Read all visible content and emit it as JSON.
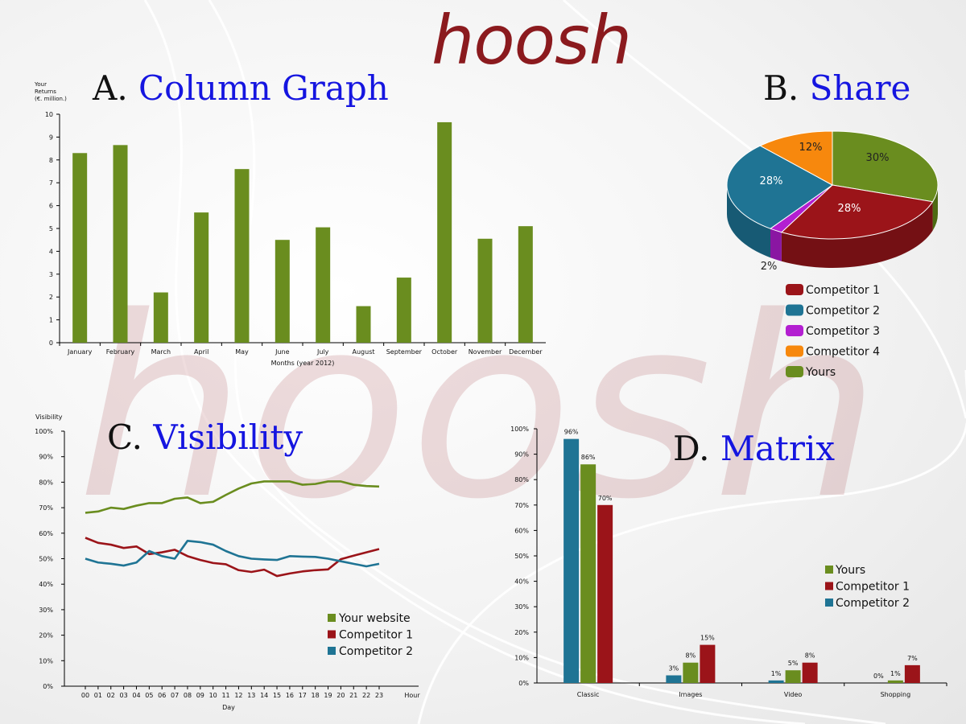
{
  "logo": "hoosh",
  "watermark": "hoosh",
  "colors": {
    "yours": "#6a8d1f",
    "comp1": "#9b1419",
    "comp2": "#1f7494",
    "comp3": "#b31fd1",
    "comp4": "#f7880d",
    "logo": "#8b1a1e",
    "title_link": "#1515e0"
  },
  "panels": {
    "a": {
      "letter": "A.",
      "title": "Column Graph"
    },
    "b": {
      "letter": "B.",
      "title": "Share"
    },
    "c": {
      "letter": "C.",
      "title": "Visibility"
    },
    "d": {
      "letter": "D.",
      "title": "Matrix"
    }
  },
  "chart_data": [
    {
      "id": "column",
      "type": "bar",
      "ylabel": "Your Returns (€. million.)",
      "xlabel": "Months (year 2012)",
      "ylim": [
        0,
        10
      ],
      "yticks": [
        "0",
        "1",
        "2",
        "3",
        "4",
        "5",
        "6",
        "7",
        "8",
        "9",
        "10"
      ],
      "categories": [
        "January",
        "February",
        "March",
        "April",
        "May",
        "June",
        "July",
        "August",
        "September",
        "October",
        "November",
        "December"
      ],
      "values": [
        8.3,
        8.65,
        2.2,
        5.7,
        7.6,
        4.5,
        5.05,
        1.6,
        2.85,
        9.65,
        4.55,
        5.1
      ]
    },
    {
      "id": "share",
      "type": "pie",
      "slices": [
        {
          "name": "Yours",
          "value": 30,
          "label": "30%"
        },
        {
          "name": "Competitor 1",
          "value": 28,
          "label": "28%"
        },
        {
          "name": "Competitor 3",
          "value": 2,
          "label": "2%"
        },
        {
          "name": "Competitor 2",
          "value": 28,
          "label": "28%"
        },
        {
          "name": "Competitor 4",
          "value": 12,
          "label": "12%"
        }
      ],
      "legend": [
        "Competitor 1",
        "Competitor 2",
        "Competitor 3",
        "Competitor 4",
        "Yours"
      ],
      "legend_position": "bottom"
    },
    {
      "id": "visibility",
      "type": "line",
      "ylabel": "Visibility",
      "xlabel": "Day",
      "xunit": "Hour",
      "ylim": [
        0,
        100
      ],
      "yticks": [
        "0%",
        "10%",
        "20%",
        "30%",
        "40%",
        "50%",
        "60%",
        "70%",
        "80%",
        "90%",
        "100%"
      ],
      "x": [
        "00",
        "01",
        "02",
        "03",
        "04",
        "05",
        "06",
        "07",
        "08",
        "09",
        "10",
        "11",
        "12",
        "13",
        "14",
        "15",
        "16",
        "17",
        "18",
        "19",
        "20",
        "21",
        "22",
        "23"
      ],
      "series": [
        {
          "name": "Your website",
          "values": [
            68,
            68.5,
            70,
            69.5,
            70.8,
            71.8,
            71.8,
            73.5,
            74,
            71.8,
            72.3,
            75,
            77.5,
            79.5,
            80.3,
            80.3,
            80.3,
            79,
            79.3,
            80.3,
            80.3,
            79,
            78.5,
            78.3
          ]
        },
        {
          "name": "Competitor 1",
          "values": [
            58.2,
            56.2,
            55.5,
            54.2,
            54.8,
            51.8,
            52.5,
            53.5,
            51,
            49.5,
            48.3,
            47.8,
            45.5,
            44.8,
            45.7,
            43.2,
            44.2,
            45,
            45.5,
            45.8,
            49.8,
            51.2,
            52.5,
            53.8
          ]
        },
        {
          "name": "Competitor 2",
          "values": [
            50,
            48.5,
            48,
            47.3,
            48.5,
            53,
            51,
            50,
            57,
            56.5,
            55.5,
            53,
            51,
            50,
            49.7,
            49.5,
            51,
            50.8,
            50.7,
            50,
            49,
            48,
            47,
            48
          ]
        }
      ],
      "legend_position": "bottom-right"
    },
    {
      "id": "matrix",
      "type": "bar",
      "ylim": [
        0,
        100
      ],
      "yticks": [
        "0%",
        "10%",
        "20%",
        "30%",
        "40%",
        "50%",
        "60%",
        "70%",
        "80%",
        "90%",
        "100%"
      ],
      "categories": [
        "Classic",
        "Images",
        "Video",
        "Shopping"
      ],
      "series": [
        {
          "name": "Competitor 2",
          "values": [
            96,
            3,
            1,
            0
          ],
          "labels": [
            "96%",
            "3%",
            "1%",
            "0%"
          ]
        },
        {
          "name": "Yours",
          "values": [
            86,
            8,
            5,
            1
          ],
          "labels": [
            "86%",
            "8%",
            "5%",
            "1%"
          ]
        },
        {
          "name": "Competitor 1",
          "values": [
            70,
            15,
            8,
            7
          ],
          "labels": [
            "70%",
            "15%",
            "8%",
            "7%"
          ]
        }
      ],
      "legend": [
        "Yours",
        "Competitor 1",
        "Competitor 2"
      ],
      "legend_position": "right"
    }
  ]
}
